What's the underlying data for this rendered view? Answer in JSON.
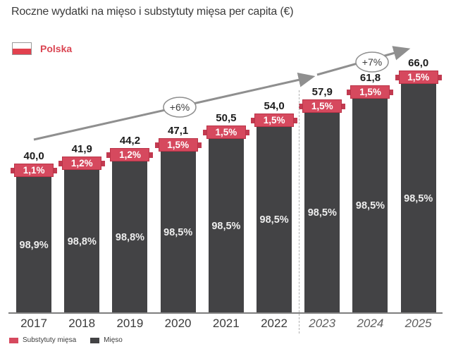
{
  "header": {
    "title": "Roczne wydatki na mięso i substytuty mięsa per capita (€)",
    "country": "Polska"
  },
  "colors": {
    "meat_bar": "#434345",
    "substitute_bar": "#d6495e",
    "substitute_dark": "#c23a50",
    "flag_red": "#e2414e",
    "country_text": "#da4552",
    "arrow_gray": "#8f8f8f"
  },
  "chart_data": {
    "type": "bar",
    "stacked": true,
    "title": "Roczne wydatki na mięso i substytuty mięsa per capita (€)",
    "categories": [
      "2017",
      "2018",
      "2019",
      "2020",
      "2021",
      "2022",
      "2023",
      "2024",
      "2025"
    ],
    "forecast_from": "2023",
    "totals": [
      40.0,
      41.9,
      44.2,
      47.1,
      50.5,
      54.0,
      57.9,
      61.8,
      66.0
    ],
    "total_labels": [
      "40,0",
      "41,9",
      "44,2",
      "47,1",
      "50,5",
      "54,0",
      "57,9",
      "61,8",
      "66,0"
    ],
    "series": [
      {
        "name": "Substytuty mięsa",
        "shares_pct": [
          1.1,
          1.2,
          1.2,
          1.5,
          1.5,
          1.5,
          1.5,
          1.5,
          1.5
        ],
        "share_labels": [
          "1,1%",
          "1,2%",
          "1,2%",
          "1,5%",
          "1,5%",
          "1,5%",
          "1,5%",
          "1,5%",
          "1,5%"
        ]
      },
      {
        "name": "Mięso",
        "shares_pct": [
          98.9,
          98.8,
          98.8,
          98.5,
          98.5,
          98.5,
          98.5,
          98.5,
          98.5
        ],
        "share_labels": [
          "98,9%",
          "98,8%",
          "98,8%",
          "98,5%",
          "98,5%",
          "98,5%",
          "98,5%",
          "98,5%",
          "98,5%"
        ]
      }
    ],
    "growth_annotations": [
      {
        "label": "+6%",
        "span": "2017-2022"
      },
      {
        "label": "+7%",
        "span": "2022-2025"
      }
    ],
    "ylim": [
      0,
      87.5
    ],
    "grid": false,
    "legend_position": "bottom-left"
  }
}
